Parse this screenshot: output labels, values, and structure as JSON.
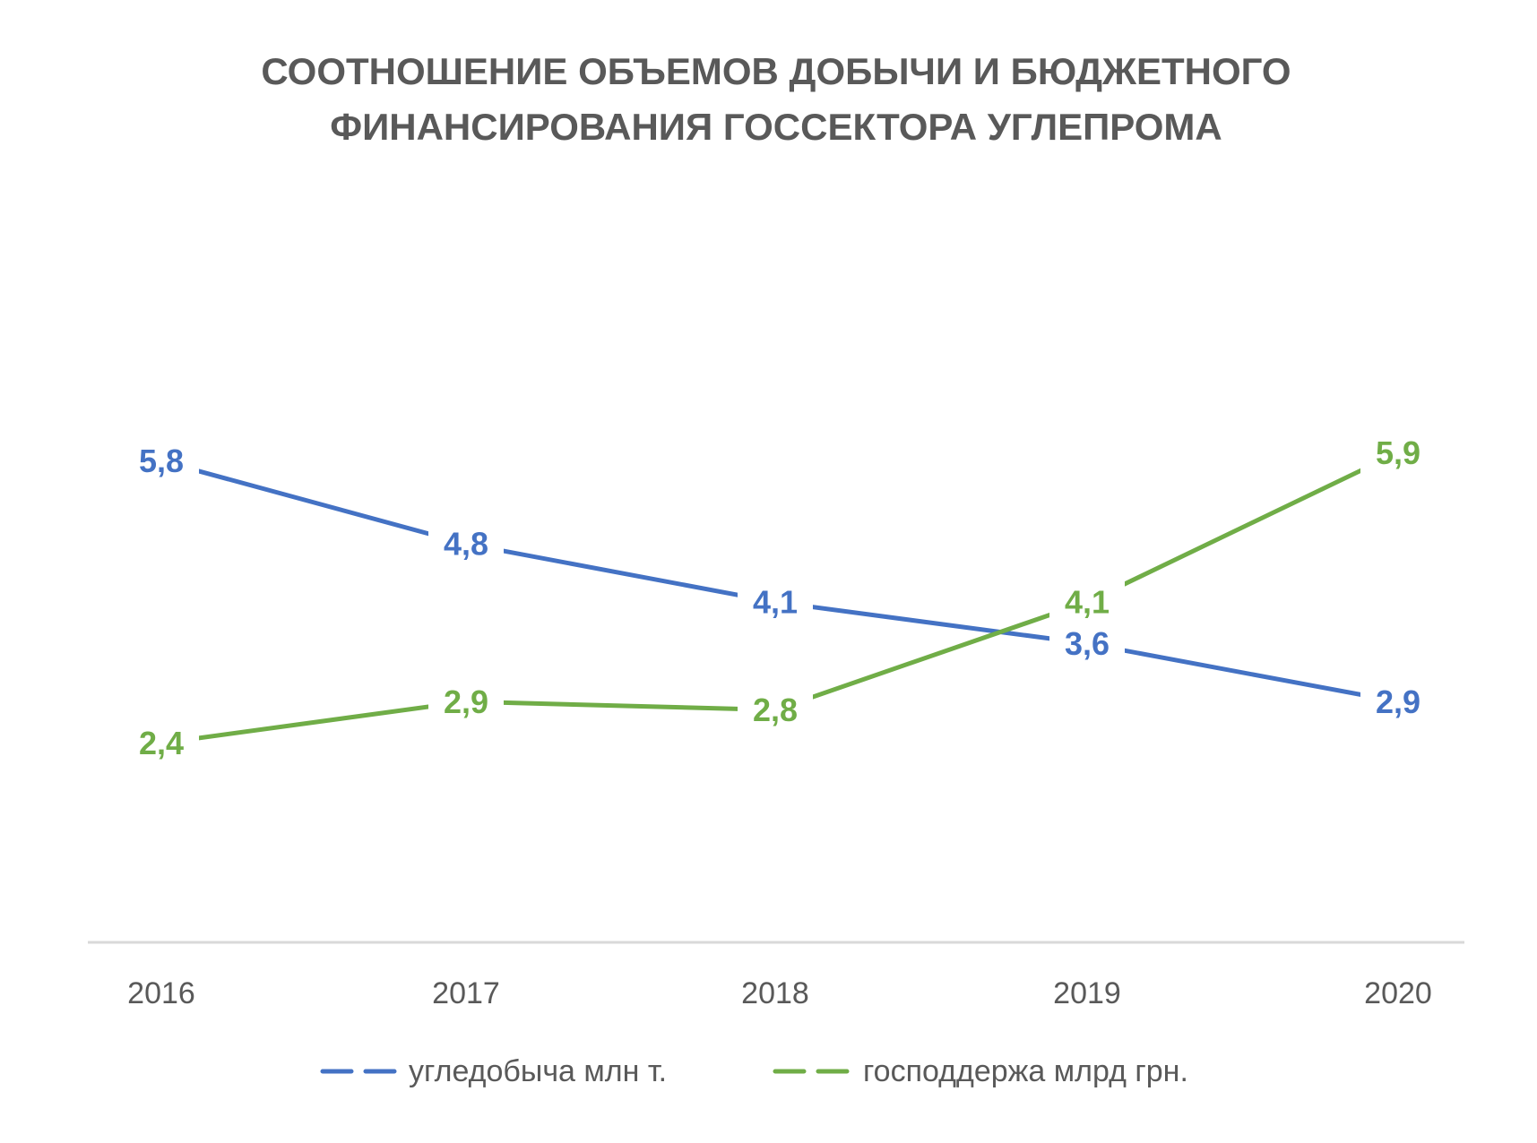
{
  "chart_data": {
    "type": "line",
    "title_lines": [
      "СООТНОШЕНИЕ ОБЪЕМОВ ДОБЫЧИ И БЮДЖЕТНОГО",
      "ФИНАНСИРОВАНИЯ ГОССЕКТОРА УГЛЕПРОМА"
    ],
    "categories": [
      "2016",
      "2017",
      "2018",
      "2019",
      "2020"
    ],
    "series": [
      {
        "name": "угледобыча млн т.",
        "values": [
          5.8,
          4.8,
          4.1,
          3.6,
          2.9
        ],
        "labels": [
          "5,8",
          "4,8",
          "4,1",
          "3,6",
          "2,9"
        ],
        "color": "#4472C4"
      },
      {
        "name": "господдержа млрд грн.",
        "values": [
          2.4,
          2.9,
          2.8,
          4.1,
          5.9
        ],
        "labels": [
          "2,4",
          "2,9",
          "2,8",
          "4,1",
          "5,9"
        ],
        "color": "#70AD47"
      }
    ],
    "ylim": [
      0,
      9
    ],
    "grid": false,
    "legend": "bottom",
    "axis_color": "#D9D9D9"
  }
}
